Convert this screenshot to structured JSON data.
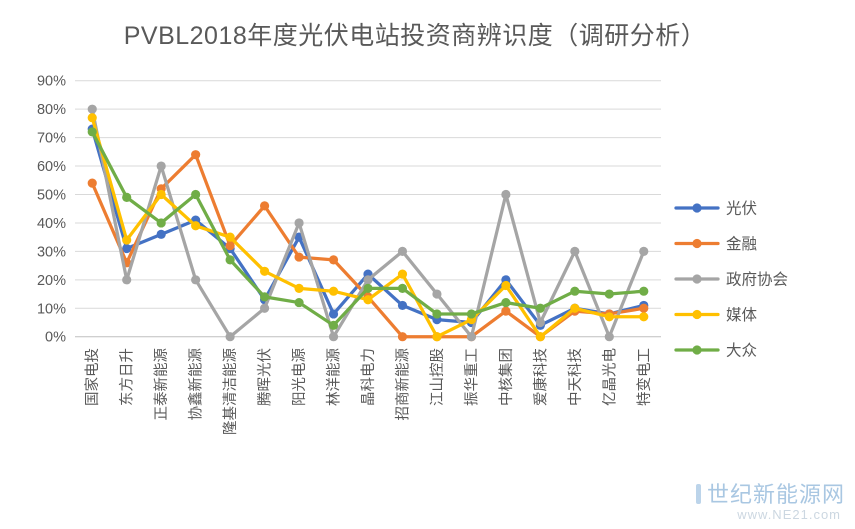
{
  "title": "PVBL2018年度光伏电站投资商辨识度（调研分析）",
  "watermark": {
    "brand": "世纪新能源网",
    "url": "www.NE21.com"
  },
  "colors": {
    "title_text": "#595959",
    "axis_text": "#595959",
    "gridline": "#d9d9d9",
    "axis_line": "#bfbfbf",
    "series_blue": "#4472c4",
    "series_orange": "#ed7d31",
    "series_gray": "#a5a5a5",
    "series_yellow": "#ffc000",
    "series_green": "#70ad47",
    "watermark_brand": "#a9c7e2",
    "watermark_url": "#ccd7e1"
  },
  "chart_data": {
    "type": "line",
    "title": "PVBL2018年度光伏电站投资商辨识度（调研分析）",
    "xlabel": "",
    "ylabel": "",
    "ylim": [
      0,
      90
    ],
    "ytick_step": 10,
    "yticks": [
      "0%",
      "10%",
      "20%",
      "30%",
      "40%",
      "50%",
      "60%",
      "70%",
      "80%",
      "90%"
    ],
    "grid": true,
    "legend_position": "right",
    "marker": "circle",
    "categories": [
      "国家电投",
      "东方日升",
      "正泰新能源",
      "协鑫新能源",
      "隆基清洁能源",
      "腾晖光伏",
      "阳光电源",
      "林洋能源",
      "晶科电力",
      "招商新能源",
      "江山控股",
      "振华重工",
      "中核集团",
      "爱康科技",
      "中天科技",
      "亿晶光电",
      "特变电工"
    ],
    "series": [
      {
        "name": "光伏",
        "color": "#4472c4",
        "values": [
          73,
          31,
          36,
          41,
          31,
          13,
          35,
          8,
          22,
          11,
          6,
          5,
          20,
          4,
          10,
          8,
          11
        ]
      },
      {
        "name": "金融",
        "color": "#ed7d31",
        "values": [
          54,
          26,
          52,
          64,
          32,
          46,
          28,
          27,
          14,
          0,
          0,
          0,
          9,
          0,
          9,
          8,
          10
        ]
      },
      {
        "name": "政府协会",
        "color": "#a5a5a5",
        "values": [
          80,
          20,
          60,
          20,
          0,
          10,
          40,
          0,
          20,
          30,
          15,
          0,
          50,
          5,
          30,
          0,
          30
        ]
      },
      {
        "name": "媒体",
        "color": "#ffc000",
        "values": [
          77,
          34,
          50,
          39,
          35,
          23,
          17,
          16,
          13,
          22,
          0,
          6,
          18,
          0,
          10,
          7,
          7
        ]
      },
      {
        "name": "大众",
        "color": "#70ad47",
        "values": [
          72,
          49,
          40,
          50,
          27,
          14,
          12,
          4,
          17,
          17,
          8,
          8,
          12,
          10,
          16,
          15,
          16
        ]
      }
    ]
  }
}
